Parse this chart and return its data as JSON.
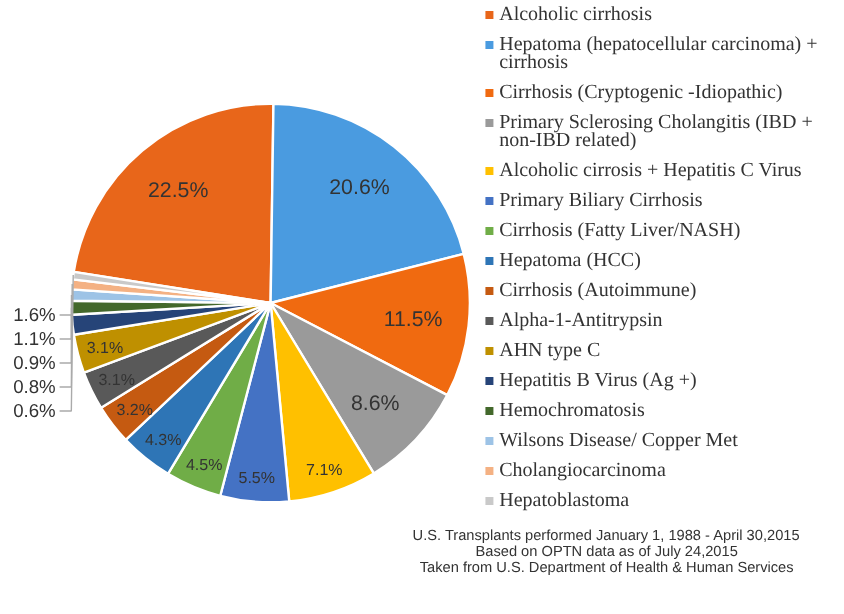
{
  "chart_data": {
    "type": "pie",
    "categories": [
      "Alcoholic cirrhosis",
      "Hepatoma (hepatocellular carcinoma) + cirrhosis",
      "Cirrhosis (Cryptogenic -Idiopathic)",
      "Primary Sclerosing Cholangitis (IBD + non-IBD related)",
      "Alcoholic cirrosis + Hepatitis C Virus",
      "Primary Biliary Cirrhosis",
      "Cirrhosis (Fatty Liver/NASH)",
      "Hepatoma (HCC)",
      "Cirrhosis (Autoimmune)",
      "Alpha-1-Antitrypsin",
      "AHN type C",
      "Hepatitis B Virus (Ag +)",
      "Hemochromatosis",
      "Wilsons Disease/ Copper Met",
      "Cholangiocarcinoma",
      "Hepatoblastoma"
    ],
    "values": [
      22.5,
      20.6,
      11.5,
      8.6,
      7.1,
      5.5,
      4.5,
      4.3,
      3.2,
      3.1,
      3.1,
      1.6,
      1.1,
      0.9,
      0.8,
      0.6
    ],
    "value_labels": [
      "22.5%",
      "20.6%",
      "11.5%",
      "8.6%",
      "7.1%",
      "5.5%",
      "4.5%",
      "4.3%",
      "3.2%",
      "3.1%",
      "3.1%",
      "1.6%",
      "1.1%",
      "0.9%",
      "0.8%",
      "0.6%"
    ],
    "colors": [
      "#e8661a",
      "#4a9be0",
      "#f06a10",
      "#9a9a9a",
      "#ffc000",
      "#4472c4",
      "#70ad47",
      "#2e75b6",
      "#c55a11",
      "#595959",
      "#bf9000",
      "#264478",
      "#43682b",
      "#9dc3e6",
      "#f4b183",
      "#c9c9c9"
    ],
    "legend": "right",
    "annotations": [
      "U.S. Transplants performed January 1, 1988 - April 30,2015",
      "Based on OPTN data as of July 24,2015",
      "Taken from U.S. Department of Health & Human Services"
    ]
  }
}
